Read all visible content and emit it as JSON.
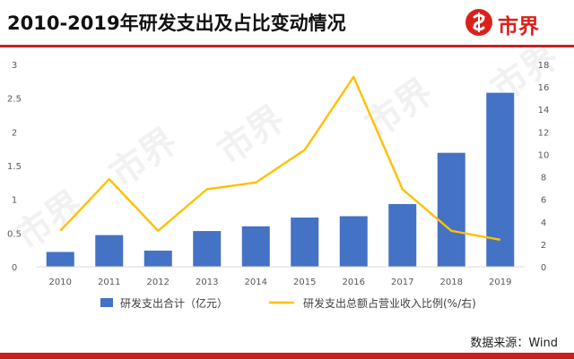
{
  "header": {
    "title": "2010-2019年研发支出及占比变动情况",
    "logo_text": "市界",
    "logo_icon": "shield-swirl-logo",
    "watermark_text": "市界"
  },
  "footer": {
    "source": "数据来源：Wind"
  },
  "colors": {
    "bar": "#4472C4",
    "line": "#FFC000",
    "accent": "#CC1F1F",
    "axis_text": "#595959",
    "grid": "#D9D9D9"
  },
  "chart_data": {
    "type": "bar+line",
    "categories": [
      "2010",
      "2011",
      "2012",
      "2013",
      "2014",
      "2015",
      "2016",
      "2017",
      "2018",
      "2019"
    ],
    "series": [
      {
        "name": "研发支出合计（亿元）",
        "type": "bar",
        "axis": "left",
        "values": [
          0.22,
          0.47,
          0.24,
          0.53,
          0.6,
          0.73,
          0.75,
          0.93,
          1.69,
          2.58
        ]
      },
      {
        "name": "研发支出总额占营业收入比例(%/右)",
        "type": "line",
        "axis": "right",
        "values": [
          3.2,
          7.8,
          3.2,
          6.9,
          7.5,
          10.4,
          16.9,
          6.9,
          3.2,
          2.4
        ]
      }
    ],
    "y_left": {
      "ticks": [
        "0",
        "0.5",
        "1",
        "1.5",
        "2",
        "2.5",
        "3"
      ],
      "ylim": [
        0,
        3
      ]
    },
    "y_right": {
      "ticks": [
        "0",
        "2",
        "4",
        "6",
        "8",
        "10",
        "12",
        "14",
        "16",
        "18"
      ],
      "ylim": [
        0,
        18
      ]
    },
    "legend_position": "bottom",
    "grid": false
  }
}
